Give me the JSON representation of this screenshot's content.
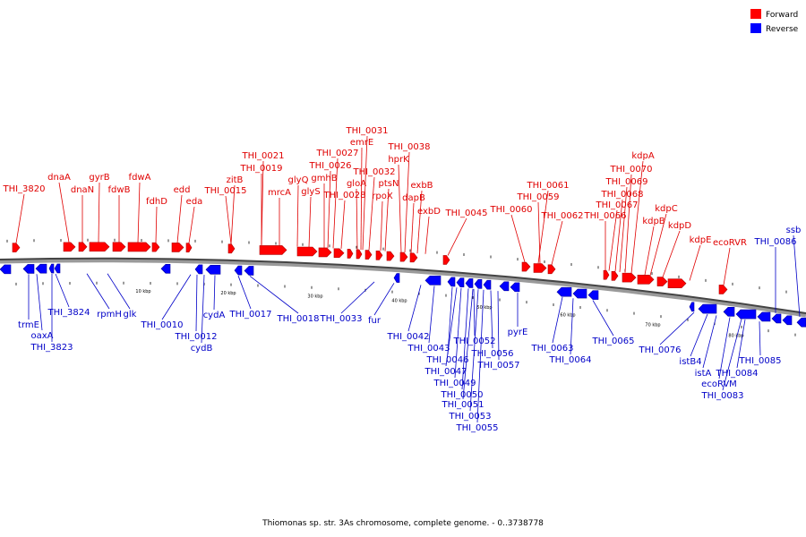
{
  "legend": [
    {
      "label": "Forward",
      "color": "#ff0000"
    },
    {
      "label": "Reverse",
      "color": "#0000ff"
    }
  ],
  "caption": "Thiomonas sp. str. 3As chromosome, complete genome. - 0..3738778",
  "ruler_labels": [
    "10 kbp",
    "20 kbp",
    "30 kbp",
    "40 kbp",
    "50 kbp",
    "60 kbp",
    "70 kbp",
    "80 kbp"
  ],
  "forward_labels": [
    "THI_3820",
    "dnaA",
    "dnaN",
    "gyrB",
    "fdwB",
    "fdwA",
    "fdhD",
    "edd",
    "eda",
    "zitB",
    "THI_0015",
    "THI_0021",
    "THI_0019",
    "mrcA",
    "glyQ",
    "glyS",
    "THI_0027",
    "THI_0026",
    "gmhB",
    "THI_0028",
    "THI_0031",
    "emrE",
    "gloA",
    "THI_0032",
    "ptsN",
    "rpoX",
    "THI_0038",
    "hprK",
    "exbB",
    "dapB",
    "exbD",
    "THI_0045",
    "THI_0060",
    "THI_0061",
    "THI_0059",
    "THI_0062",
    "kdpA",
    "THI_0070",
    "THI_0069",
    "THI_0068",
    "THI_0067",
    "THI_0066",
    "kdpC",
    "kdpB",
    "kdpD",
    "kdpE",
    "ecoRVR"
  ],
  "reverse_labels": [
    "THI_0086",
    "ssb",
    "trmE",
    "oaxA",
    "THI_3823",
    "THI_3824",
    "rpmH",
    "glk",
    "THI_0010",
    "THI_0012",
    "cydA",
    "cydB",
    "THI_0017",
    "THI_0018",
    "THI_0033",
    "fur",
    "THI_0042",
    "THI_0043",
    "THI_0046",
    "THI_0047",
    "THI_0049",
    "THI_0050",
    "THI_0051",
    "THI_0052",
    "THI_0053",
    "THI_0055",
    "THI_0056",
    "THI_0057",
    "pyrE",
    "THI_0063",
    "THI_0064",
    "THI_0065",
    "THI_0076",
    "istB4",
    "istA",
    "ecoRVM",
    "THI_0083",
    "THI_0084",
    "THI_0085"
  ]
}
